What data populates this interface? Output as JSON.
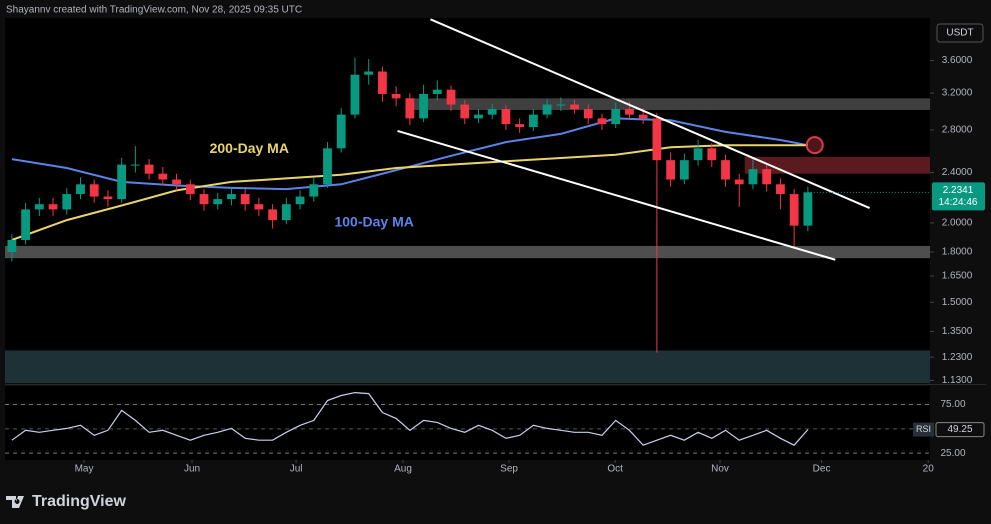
{
  "header": "Shayannv created with TradingView.com, Nov 28, 2025 09:35 UTC",
  "footer_logo": "TradingView",
  "chart_data": {
    "type": "candlestick",
    "currency": "USDT",
    "log_scale": true,
    "up_color": "#089981",
    "down_color": "#f23645",
    "open": [
      1.8,
      1.88,
      2.1,
      2.14,
      2.1,
      2.22,
      2.3,
      2.2,
      2.18,
      2.47,
      2.47,
      2.39,
      2.34,
      2.3,
      2.22,
      2.14,
      2.18,
      2.22,
      2.14,
      2.1,
      2.02,
      2.14,
      2.2,
      2.3,
      2.62,
      2.96,
      3.42,
      3.46,
      3.19,
      3.14,
      2.92,
      3.19,
      3.24,
      3.07,
      2.92,
      2.96,
      3.02,
      2.86,
      2.83,
      2.96,
      3.07,
      3.07,
      3.02,
      2.92,
      2.86,
      3.02,
      2.96,
      2.92,
      2.51,
      2.34,
      2.51,
      2.62,
      2.51,
      2.34,
      2.3,
      2.43,
      2.3,
      2.22,
      1.98
    ],
    "high": [
      1.92,
      2.15,
      2.19,
      2.19,
      2.27,
      2.36,
      2.34,
      2.25,
      2.53,
      2.64,
      2.52,
      2.45,
      2.39,
      2.34,
      2.26,
      2.23,
      2.27,
      2.26,
      2.19,
      2.14,
      2.19,
      2.25,
      2.36,
      2.68,
      3.03,
      3.64,
      3.62,
      3.52,
      3.28,
      3.2,
      3.3,
      3.35,
      3.29,
      3.12,
      3.02,
      3.08,
      3.06,
      2.92,
      3.02,
      3.13,
      3.15,
      3.12,
      3.07,
      2.97,
      3.09,
      3.1,
      3.03,
      2.98,
      2.58,
      2.57,
      2.7,
      2.67,
      2.56,
      2.39,
      2.52,
      2.48,
      2.35,
      2.26,
      2.28
    ],
    "low": [
      1.74,
      1.85,
      2.05,
      2.05,
      2.06,
      2.18,
      2.15,
      2.12,
      2.15,
      2.4,
      2.34,
      2.29,
      2.25,
      2.17,
      2.09,
      2.1,
      2.13,
      2.09,
      2.05,
      1.96,
      1.99,
      2.1,
      2.16,
      2.27,
      2.58,
      2.92,
      3.3,
      3.1,
      3.05,
      2.85,
      2.88,
      3.12,
      3.0,
      2.86,
      2.87,
      2.91,
      2.8,
      2.77,
      2.79,
      2.92,
      3.0,
      2.97,
      2.86,
      2.8,
      2.82,
      2.9,
      2.86,
      1.25,
      2.28,
      2.3,
      2.46,
      2.45,
      2.28,
      2.12,
      2.26,
      2.24,
      2.1,
      1.82,
      1.94
    ],
    "close": [
      1.88,
      2.1,
      2.14,
      2.1,
      2.22,
      2.3,
      2.2,
      2.18,
      2.47,
      2.47,
      2.39,
      2.34,
      2.3,
      2.22,
      2.14,
      2.18,
      2.22,
      2.14,
      2.1,
      2.02,
      2.14,
      2.2,
      2.3,
      2.62,
      2.96,
      3.42,
      3.46,
      3.19,
      3.14,
      2.92,
      3.19,
      3.24,
      3.07,
      2.92,
      2.96,
      3.02,
      2.86,
      2.83,
      2.96,
      3.07,
      3.07,
      3.02,
      2.92,
      2.86,
      3.02,
      2.96,
      2.92,
      2.51,
      2.34,
      2.51,
      2.62,
      2.51,
      2.34,
      2.3,
      2.43,
      2.3,
      2.22,
      1.98,
      2.2341
    ],
    "last_price_countdown": "14:24:46",
    "xlim": [
      -0.5,
      66.9
    ],
    "xticks": [
      {
        "value": 5.26,
        "label": "May"
      },
      {
        "value": 13.13,
        "label": "Jun"
      },
      {
        "value": 20.71,
        "label": "Jul"
      },
      {
        "value": 28.5,
        "label": "Aug"
      },
      {
        "value": 36.23,
        "label": "Sep"
      },
      {
        "value": 43.96,
        "label": "Oct"
      },
      {
        "value": 51.6,
        "label": "Nov"
      },
      {
        "value": 59.0,
        "label": "Dec"
      },
      {
        "value": 66.77,
        "label": "20"
      }
    ],
    "ylim": [
      1.12,
      4.2
    ],
    "yticks": [
      {
        "value": 3.6,
        "label": "3.6000"
      },
      {
        "value": 3.2,
        "label": "3.2000"
      },
      {
        "value": 2.8,
        "label": "2.8000"
      },
      {
        "value": 2.4,
        "label": "2.4000"
      },
      {
        "value": 2.0,
        "label": "2.0000"
      },
      {
        "value": 1.8,
        "label": "1.8000"
      },
      {
        "value": 1.65,
        "label": "1.6500"
      },
      {
        "value": 1.5,
        "label": "1.5000"
      },
      {
        "value": 1.35,
        "label": "1.3500"
      },
      {
        "value": 1.23,
        "label": "1.2300"
      },
      {
        "value": 1.13,
        "label": "1.1300"
      }
    ],
    "series": [
      {
        "name": "100-Day MA",
        "color": "#5b84e8",
        "label_x": 26.4,
        "label_y": 2.0,
        "x": [
          0,
          4,
          8,
          12,
          16,
          20,
          24,
          28,
          32,
          36,
          40,
          44,
          48,
          52,
          56,
          58
        ],
        "values": [
          2.52,
          2.44,
          2.32,
          2.29,
          2.27,
          2.26,
          2.3,
          2.42,
          2.55,
          2.68,
          2.76,
          2.92,
          2.9,
          2.78,
          2.7,
          2.65
        ]
      },
      {
        "name": "200-Day MA",
        "color": "#e9d46a",
        "label_x": 17.3,
        "label_y": 2.61,
        "x": [
          0,
          4,
          8,
          12,
          16,
          20,
          24,
          28,
          32,
          36,
          40,
          44,
          48,
          52,
          56,
          58
        ],
        "values": [
          1.88,
          2.02,
          2.13,
          2.25,
          2.32,
          2.35,
          2.38,
          2.44,
          2.47,
          2.5,
          2.53,
          2.56,
          2.63,
          2.65,
          2.65,
          2.65
        ]
      }
    ],
    "zones": [
      {
        "low": 1.76,
        "high": 1.84,
        "x_start": -0.5,
        "color": "#5c5c5c"
      },
      {
        "low": 3.01,
        "high": 3.14,
        "x_start": 28.7,
        "color": "#4a4a4a"
      },
      {
        "low": 2.39,
        "high": 2.54,
        "x_start": 53.4,
        "color": "#6b1e24"
      },
      {
        "low": 1.12,
        "high": 1.26,
        "x_start": -0.5,
        "color": "#223a40"
      }
    ],
    "trendlines": [
      {
        "x": [
          30.5,
          62.5
        ],
        "y": [
          4.18,
          2.11
        ],
        "color": "#ffffff"
      },
      {
        "x": [
          28.1,
          60.0
        ],
        "y": [
          2.79,
          1.75
        ],
        "color": "#ffffff"
      }
    ],
    "marker": {
      "x": 58.5,
      "y": 2.65,
      "color": "#e03b46"
    },
    "rsi": {
      "type": "line",
      "name": "RSI",
      "color": "#c9d0ee",
      "values": [
        38.3,
        48.5,
        46.4,
        48.5,
        50.5,
        53.6,
        43.4,
        48.5,
        68.9,
        58.7,
        46.4,
        48.5,
        43.4,
        38.3,
        43.4,
        46.4,
        50.5,
        40.3,
        38.3,
        38.3,
        46.4,
        53.6,
        58.7,
        79.1,
        84.2,
        87.2,
        86.2,
        66.8,
        60.7,
        48.5,
        58.7,
        56.6,
        50.5,
        46.4,
        53.6,
        48.5,
        40.3,
        43.4,
        53.6,
        50.5,
        48.5,
        46.4,
        46.4,
        43.4,
        58.7,
        48.5,
        33.2,
        38.3,
        43.4,
        38.3,
        46.4,
        40.3,
        48.5,
        38.3,
        43.4,
        48.5,
        40.3,
        33.2,
        49.25
      ],
      "ylim": [
        18,
        94
      ],
      "yticks": [
        {
          "value": 75,
          "label": "75.00"
        },
        {
          "value": 25,
          "label": "25.00"
        }
      ],
      "midline": 50
    }
  }
}
